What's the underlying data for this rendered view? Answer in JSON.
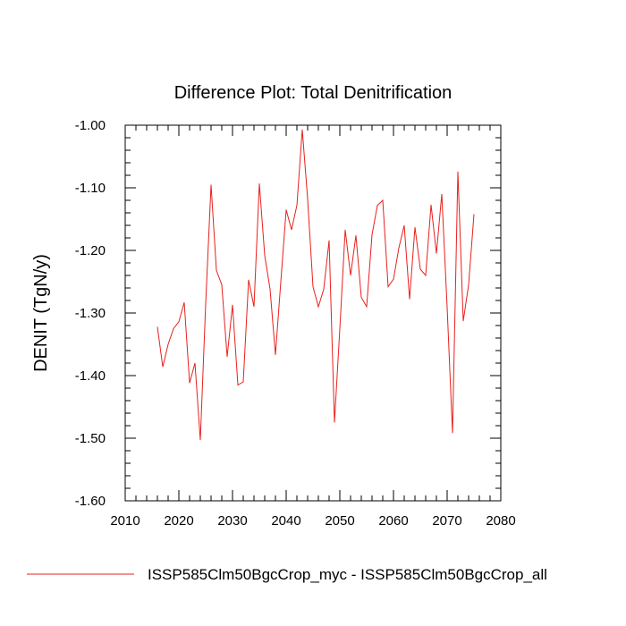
{
  "chart_data": {
    "type": "line",
    "title": "Difference Plot: Total Denitrification",
    "xlabel": "",
    "ylabel": "DENIT  (TgN/y)",
    "xlim": [
      2010,
      2080
    ],
    "ylim": [
      -1.6,
      -1.0
    ],
    "xticks": [
      2010,
      2020,
      2030,
      2040,
      2050,
      2060,
      2070,
      2080
    ],
    "xtick_labels": [
      "2010",
      "2020",
      "2030",
      "2040",
      "2050",
      "2060",
      "2070",
      "2080"
    ],
    "yticks": [
      -1.6,
      -1.5,
      -1.4,
      -1.3,
      -1.2,
      -1.1,
      -1.0
    ],
    "ytick_labels": [
      "-1.60",
      "-1.50",
      "-1.40",
      "-1.30",
      "-1.20",
      "-1.10",
      "-1.00"
    ],
    "grid": false,
    "legend_position": "bottom-left",
    "series": [
      {
        "name": "ISSP585Clm50BgcCrop_myc - ISSP585Clm50BgcCrop_all",
        "color": "#e8201c",
        "x": [
          2016,
          2017,
          2018,
          2019,
          2020,
          2021,
          2022,
          2023,
          2024,
          2025,
          2026,
          2027,
          2028,
          2029,
          2030,
          2031,
          2032,
          2033,
          2034,
          2035,
          2036,
          2037,
          2038,
          2039,
          2040,
          2041,
          2042,
          2043,
          2044,
          2045,
          2046,
          2047,
          2048,
          2049,
          2050,
          2051,
          2052,
          2053,
          2054,
          2055,
          2056,
          2057,
          2058,
          2059,
          2060,
          2061,
          2062,
          2063,
          2064,
          2065,
          2066,
          2067,
          2068,
          2069,
          2070,
          2071,
          2072,
          2073,
          2074,
          2075
        ],
        "y": [
          -1.322,
          -1.386,
          -1.35,
          -1.325,
          -1.314,
          -1.283,
          -1.412,
          -1.38,
          -1.503,
          -1.285,
          -1.095,
          -1.232,
          -1.255,
          -1.37,
          -1.287,
          -1.415,
          -1.41,
          -1.247,
          -1.29,
          -1.093,
          -1.208,
          -1.262,
          -1.367,
          -1.25,
          -1.135,
          -1.167,
          -1.128,
          -1.007,
          -1.118,
          -1.258,
          -1.29,
          -1.262,
          -1.184,
          -1.475,
          -1.325,
          -1.167,
          -1.24,
          -1.176,
          -1.275,
          -1.29,
          -1.175,
          -1.128,
          -1.12,
          -1.258,
          -1.246,
          -1.196,
          -1.16,
          -1.278,
          -1.163,
          -1.23,
          -1.24,
          -1.127,
          -1.205,
          -1.11,
          -1.291,
          -1.492,
          -1.074,
          -1.313,
          -1.255,
          -1.142
        ]
      }
    ]
  }
}
